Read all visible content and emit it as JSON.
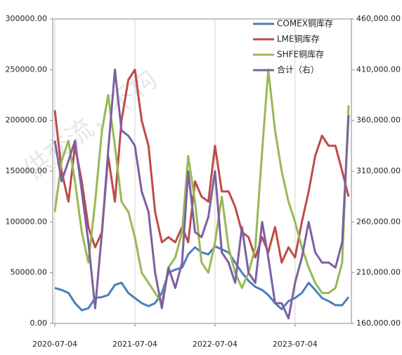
{
  "chart_data": {
    "type": "line",
    "watermark": "供交流，不构",
    "x": [
      "2020-07-04",
      "2020-08-04",
      "2020-09-04",
      "2020-10-04",
      "2020-11-04",
      "2020-12-04",
      "2021-01-04",
      "2021-02-04",
      "2021-03-04",
      "2021-04-04",
      "2021-05-04",
      "2021-06-04",
      "2021-07-04",
      "2021-08-04",
      "2021-09-04",
      "2021-10-04",
      "2021-11-04",
      "2021-12-04",
      "2022-01-04",
      "2022-02-04",
      "2022-03-04",
      "2022-04-04",
      "2022-05-04",
      "2022-06-04",
      "2022-07-04",
      "2022-08-04",
      "2022-09-04",
      "2022-10-04",
      "2022-11-04",
      "2022-12-04",
      "2023-01-04",
      "2023-02-04",
      "2023-03-04",
      "2023-04-04",
      "2023-05-04",
      "2023-06-04",
      "2023-07-04",
      "2023-08-04",
      "2023-09-04",
      "2023-10-04",
      "2023-11-04",
      "2023-12-04",
      "2024-01-04",
      "2024-02-04",
      "2024-03-04"
    ],
    "xlim": [
      "2020-07-04",
      "2024-03-04"
    ],
    "xticks": [
      "2020-07-04",
      "2021-07-04",
      "2022-07-04",
      "2023-07-04"
    ],
    "ylim": [
      0,
      300000
    ],
    "yticks": [
      {
        "value": 0,
        "label": "0.00"
      },
      {
        "value": 50000,
        "label": "50000.00"
      },
      {
        "value": 100000,
        "label": "100000.00"
      },
      {
        "value": 150000,
        "label": "150000.00"
      },
      {
        "value": 200000,
        "label": "200000.00"
      },
      {
        "value": 250000,
        "label": "250000.00"
      },
      {
        "value": 300000,
        "label": "300000.00"
      }
    ],
    "y2lim": [
      160000,
      460000
    ],
    "y2ticks": [
      {
        "value": 160000,
        "label": "160,000.00"
      },
      {
        "value": 210000,
        "label": "210,000.00"
      },
      {
        "value": 260000,
        "label": "260,000.00"
      },
      {
        "value": 310000,
        "label": "310,000.00"
      },
      {
        "value": 360000,
        "label": "360,000.00"
      },
      {
        "value": 410000,
        "label": "410,000.00"
      },
      {
        "value": 460000,
        "label": "460,000.00"
      }
    ],
    "grid": "x",
    "legend": "top-right",
    "series": [
      {
        "name": "COMEX铜库存",
        "color": "#4a7ebb",
        "values": [
          35000,
          33000,
          30000,
          20000,
          13000,
          15000,
          25000,
          26000,
          28000,
          38000,
          40000,
          30000,
          25000,
          20000,
          17000,
          20000,
          30000,
          50000,
          53000,
          55000,
          68000,
          75000,
          70000,
          68000,
          76000,
          73000,
          70000,
          60000,
          50000,
          42000,
          36000,
          33000,
          28000,
          20000,
          14000,
          22000,
          25000,
          30000,
          40000,
          33000,
          25000,
          22000,
          18000,
          18000,
          26000
        ]
      },
      {
        "name": "LME铜库存",
        "color": "#be4b48",
        "values": [
          210000,
          150000,
          120000,
          175000,
          140000,
          95000,
          75000,
          90000,
          165000,
          120000,
          200000,
          240000,
          250000,
          200000,
          175000,
          110000,
          80000,
          85000,
          80000,
          95000,
          80000,
          140000,
          125000,
          120000,
          175000,
          130000,
          130000,
          115000,
          90000,
          85000,
          65000,
          85000,
          70000,
          95000,
          60000,
          75000,
          65000,
          100000,
          130000,
          165000,
          185000,
          175000,
          175000,
          150000,
          125000
        ]
      },
      {
        "name": "SHFE铜库存",
        "color": "#98b954",
        "values": [
          110000,
          160000,
          180000,
          140000,
          90000,
          60000,
          120000,
          190000,
          225000,
          175000,
          120000,
          110000,
          85000,
          50000,
          40000,
          30000,
          20000,
          55000,
          65000,
          90000,
          165000,
          120000,
          60000,
          50000,
          80000,
          125000,
          75000,
          50000,
          35000,
          50000,
          75000,
          170000,
          250000,
          190000,
          150000,
          120000,
          100000,
          75000,
          55000,
          40000,
          30000,
          30000,
          35000,
          60000,
          215000
        ]
      },
      {
        "name": "合计（右）",
        "color": "#7d60a0",
        "axis": "y2",
        "values": [
          340000,
          300000,
          320000,
          340000,
          290000,
          240000,
          175000,
          250000,
          330000,
          410000,
          350000,
          345000,
          335000,
          290000,
          270000,
          210000,
          175000,
          215000,
          195000,
          220000,
          310000,
          250000,
          245000,
          265000,
          310000,
          230000,
          220000,
          200000,
          255000,
          210000,
          200000,
          260000,
          225000,
          180000,
          180000,
          165000,
          200000,
          225000,
          260000,
          230000,
          220000,
          220000,
          215000,
          240000,
          365000
        ]
      }
    ]
  }
}
